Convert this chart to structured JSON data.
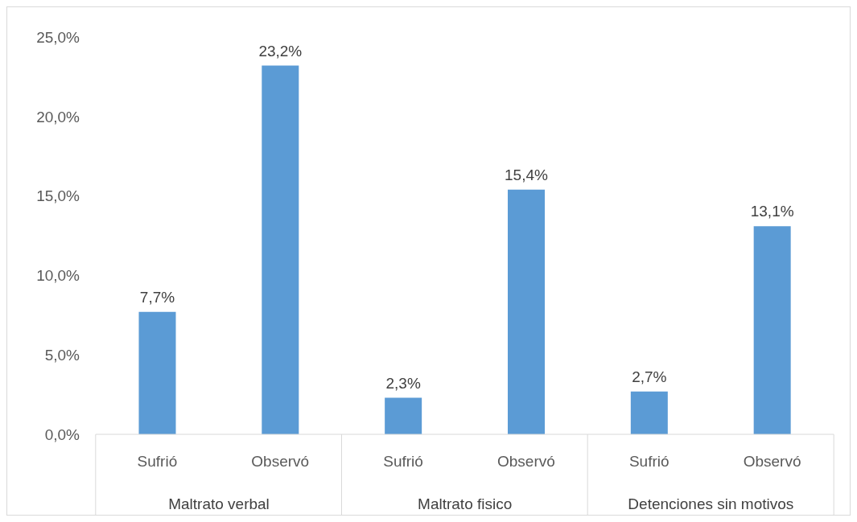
{
  "chart_data": {
    "type": "bar",
    "categories": [
      "Sufrió",
      "Observó",
      "Sufrió",
      "Observó",
      "Sufrió",
      "Observó"
    ],
    "values": [
      7.7,
      23.2,
      2.3,
      15.4,
      2.7,
      13.1
    ],
    "value_labels": [
      "7,7%",
      "23,2%",
      "2,3%",
      "15,4%",
      "2,7%",
      "13,1%"
    ],
    "color": "#5b9bd5",
    "ylim": [
      0,
      25
    ],
    "yticks": [
      {
        "value": 0,
        "label": "0,0%"
      },
      {
        "value": 5,
        "label": "5,0%"
      },
      {
        "value": 10,
        "label": "10,0%"
      },
      {
        "value": 15,
        "label": "15,0%"
      },
      {
        "value": 20,
        "label": "20,0%"
      },
      {
        "value": 25,
        "label": "25,0%"
      }
    ],
    "grid": false,
    "legend": false,
    "annotations": [
      "Maltrato verbal",
      "Maltrato fisico",
      "Detenciones sin motivos"
    ]
  }
}
